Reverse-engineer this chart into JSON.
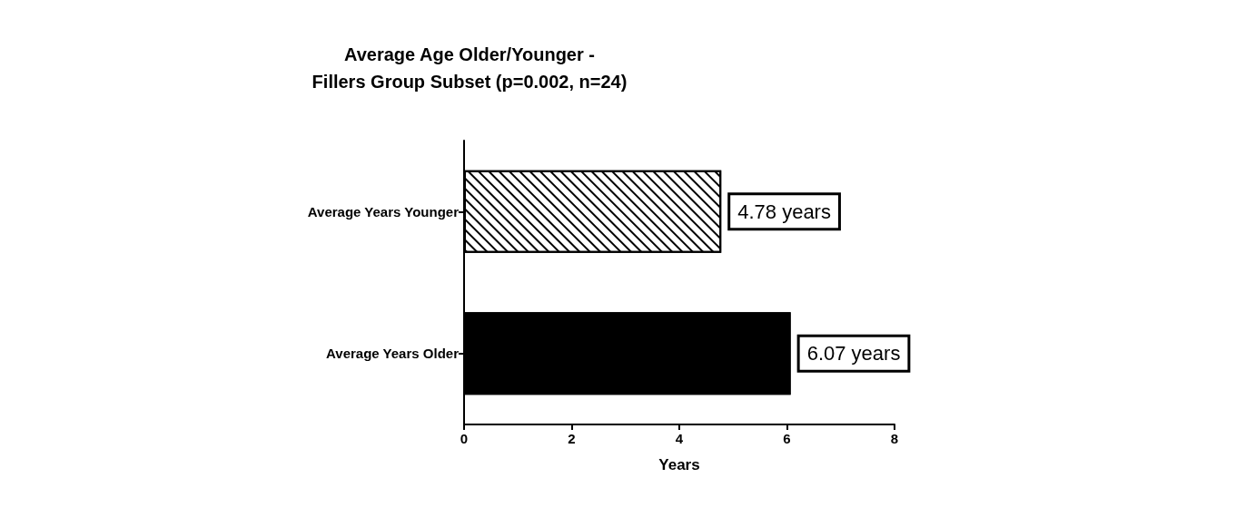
{
  "chart_data": {
    "type": "bar",
    "orientation": "horizontal",
    "title": "Average Age Older/Younger -\nFillers Group Subset (p=0.002, n=24)",
    "xlabel": "Years",
    "categories": [
      "Average Years Younger",
      "Average Years Older"
    ],
    "values": [
      4.78,
      6.07
    ],
    "colors": [
      "#ffffff",
      "#000000"
    ],
    "value_labels": [
      "4.78 years",
      "6.07 years"
    ],
    "xlim": [
      0,
      8
    ],
    "xticks": [
      0,
      2,
      4,
      6,
      8
    ],
    "grid": false
  }
}
